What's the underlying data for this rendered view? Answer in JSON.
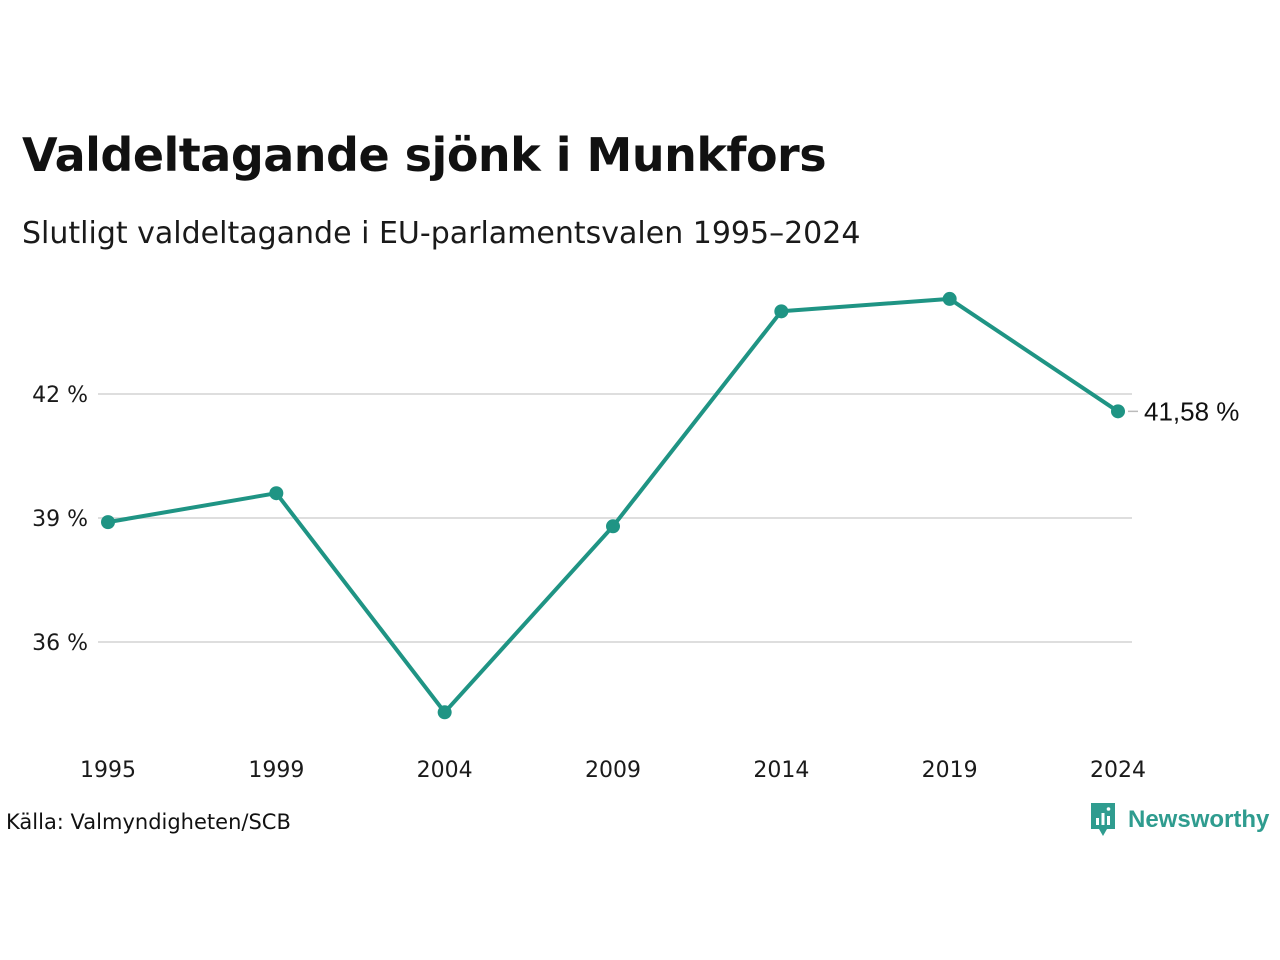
{
  "header": {
    "title": "Valdeltagande sjönk i Munkfors",
    "subtitle": "Slutligt valdeltagande i EU-parlamentsvalen 1995–2024"
  },
  "footer": {
    "source": "Källa: Valmyndigheten/SCB",
    "brand": "Newsworthy",
    "brand_icon": "newsworthy-logo-icon"
  },
  "colors": {
    "line": "#1f9484",
    "grid": "#dedede",
    "brand": "#2f9c8f"
  },
  "chart_data": {
    "type": "line",
    "title": "Valdeltagande sjönk i Munkfors",
    "subtitle": "Slutligt valdeltagande i EU-parlamentsvalen 1995–2024",
    "xlabel": "",
    "ylabel": "",
    "categories": [
      "1995",
      "1999",
      "2004",
      "2009",
      "2014",
      "2019",
      "2024"
    ],
    "series": [
      {
        "values": [
          38.9,
          39.6,
          34.3,
          38.8,
          44.0,
          44.3,
          41.58
        ]
      }
    ],
    "y_ticks": [
      36,
      39,
      42
    ],
    "y_tick_labels": [
      "36 %",
      "39 %",
      "42 %"
    ],
    "ylim": [
      33.5,
      46.5
    ],
    "last_value_label": "41,58 %",
    "grid": true,
    "legend": "none"
  }
}
